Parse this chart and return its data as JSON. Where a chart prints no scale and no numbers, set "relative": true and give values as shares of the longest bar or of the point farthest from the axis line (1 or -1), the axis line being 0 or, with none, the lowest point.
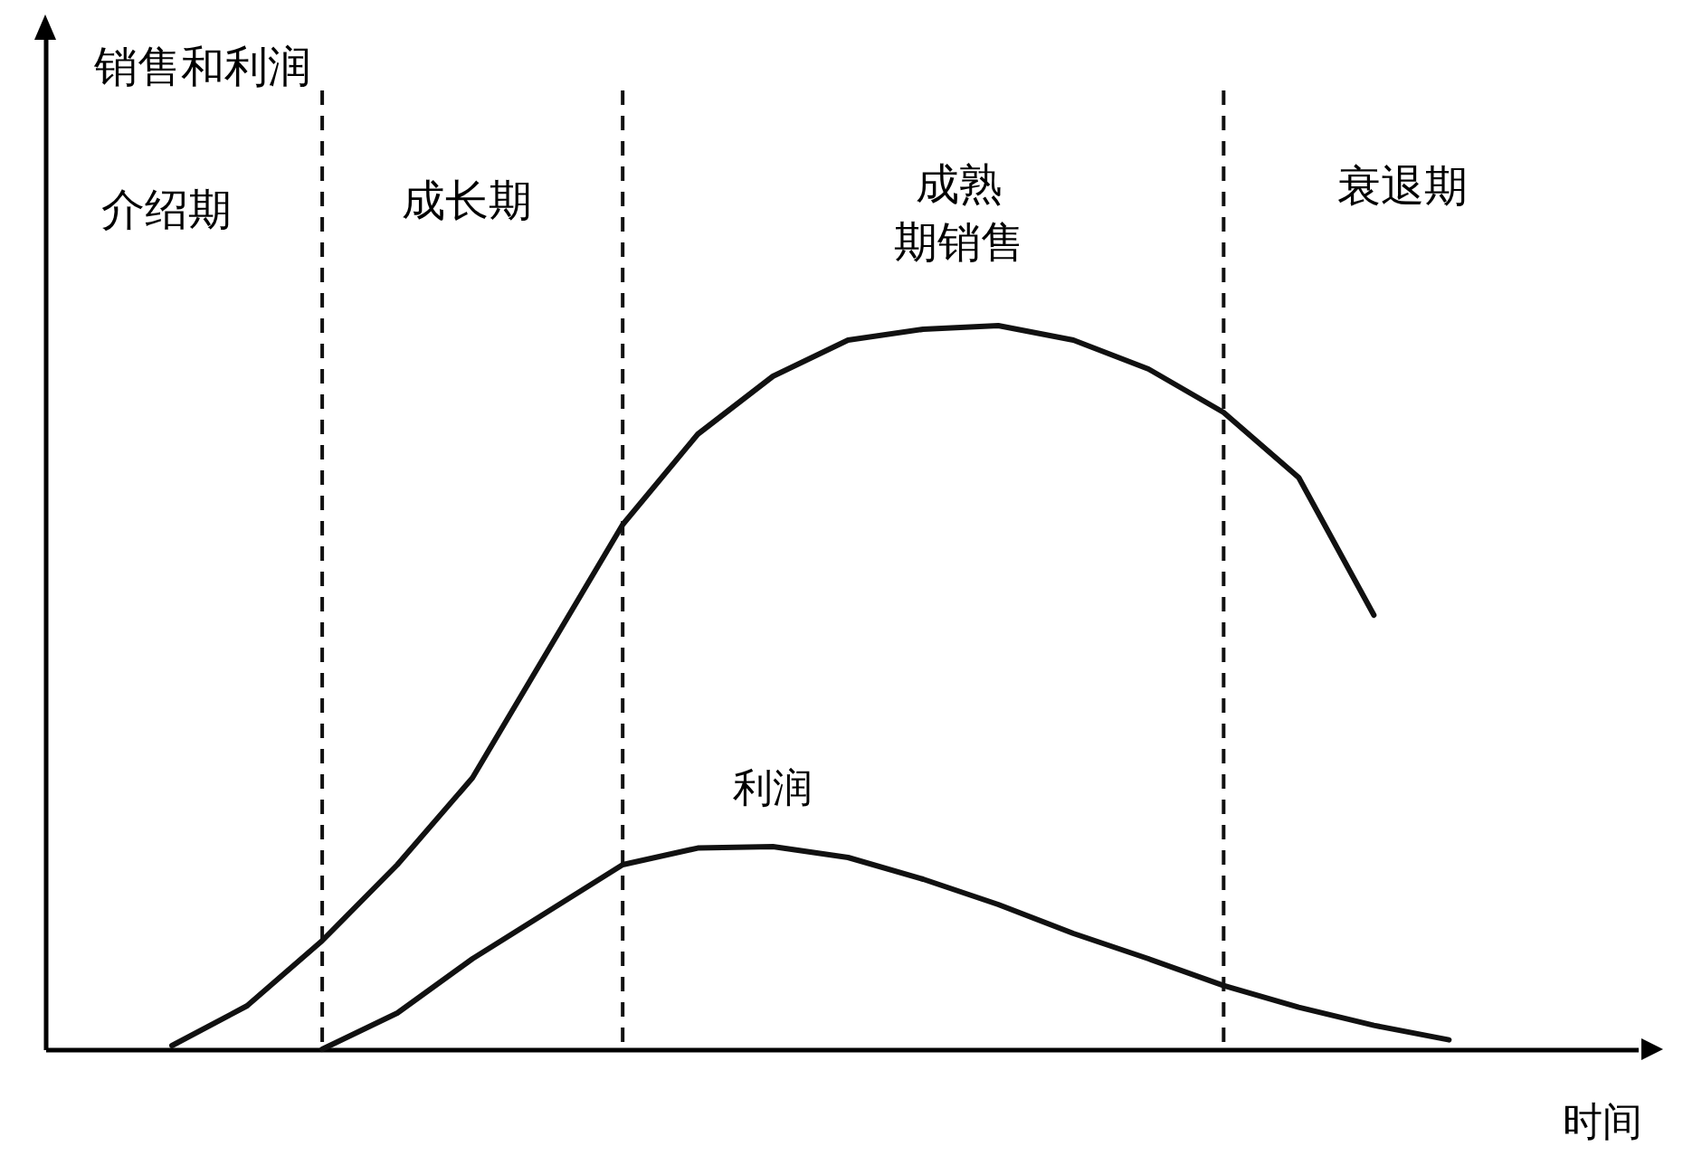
{
  "chart_data": {
    "type": "line",
    "relative": true,
    "xlabel": "时间",
    "grid": "x",
    "line_style": "solid",
    "categories": [
      null,
      null,
      null,
      null,
      null,
      null,
      null,
      null,
      null,
      null,
      null,
      null,
      null,
      null,
      null,
      null,
      null,
      null,
      null
    ],
    "series": [
      {
        "color": "#111111",
        "values": [
          null,
          0.005,
          0.06,
          0.15,
          0.255,
          0.375,
          0.55,
          0.725,
          0.85,
          0.93,
          0.98,
          0.995,
          1.0,
          0.98,
          0.94,
          0.88,
          0.79,
          0.6,
          null
        ]
      },
      {
        "name": "利润",
        "color": "#111111",
        "values": [
          null,
          null,
          null,
          0,
          0.05,
          0.125,
          0.19,
          0.255,
          0.278,
          0.28,
          0.265,
          0.235,
          0.2,
          0.16,
          0.125,
          0.088,
          0.058,
          0.033,
          0.013
        ]
      }
    ],
    "annotations": [
      "销售和利润",
      "介绍期",
      "成长期",
      "成熟",
      "期销售",
      "衰退期"
    ]
  }
}
